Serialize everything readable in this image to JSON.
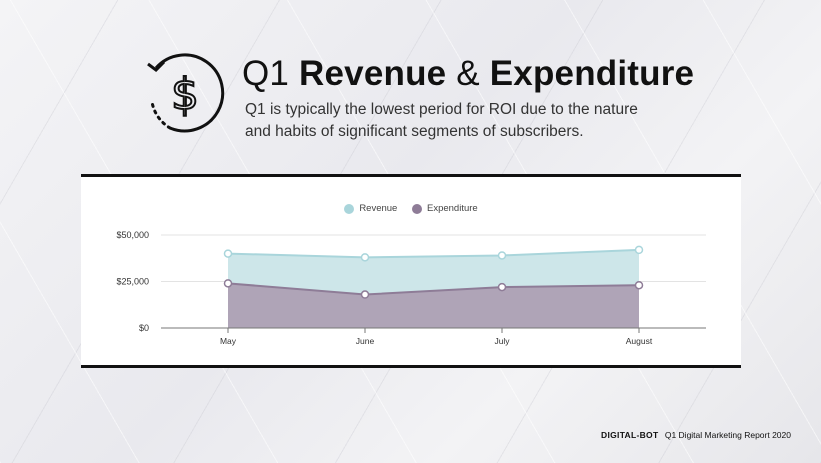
{
  "header": {
    "title_prefix": "Q1",
    "title_bold_1": "Revenue",
    "title_amp": "&",
    "title_bold_2": "Expenditure",
    "subtitle": "Q1 is typically the lowest period for ROI due to the nature and habits of significant segments of subscribers.",
    "icon": "dollar-cycle-icon"
  },
  "footer": {
    "brand": "DIGITAL-BOT",
    "report": "Q1 Digital Marketing Report 2020"
  },
  "colors": {
    "revenue_fill": "#cde6e9",
    "revenue_line": "#a9d5db",
    "expenditure_fill": "#afa4b7",
    "expenditure_line": "#8e7c97"
  },
  "chart_data": {
    "type": "area",
    "categories": [
      "May",
      "June",
      "July",
      "August"
    ],
    "series": [
      {
        "name": "Revenue",
        "values": [
          40000,
          38000,
          39000,
          42000
        ]
      },
      {
        "name": "Expenditure",
        "values": [
          24000,
          18000,
          22000,
          23000
        ]
      }
    ],
    "ylim": [
      0,
      50000
    ],
    "yticks": [
      0,
      25000,
      50000
    ],
    "ytick_labels": [
      "$0",
      "$25,000",
      "$50,000"
    ],
    "grid": true,
    "legend_position": "top-center"
  }
}
